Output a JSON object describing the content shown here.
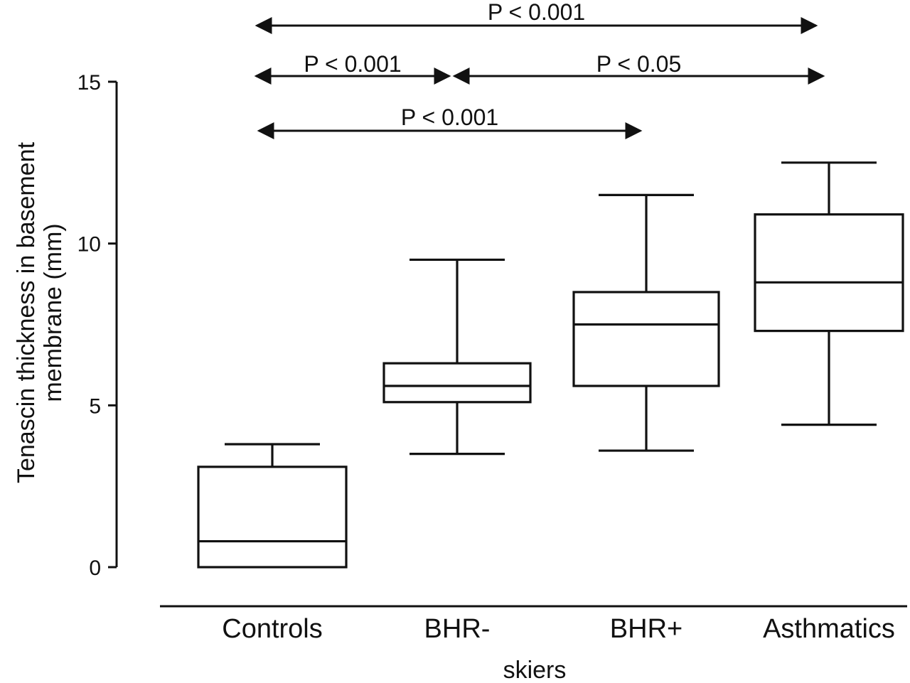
{
  "chart_data": {
    "type": "box",
    "xlabel": "skiers",
    "ylabel": "Tenascin thickness in basement membrane (mm)",
    "ylabel_lines": [
      "Tenascin thickness in basement",
      "membrane (mm)"
    ],
    "ylim": [
      0,
      15
    ],
    "yticks": [
      0,
      5,
      10,
      15
    ],
    "categories": [
      "Controls",
      "BHR-",
      "BHR+",
      "Asthmatics"
    ],
    "boxes": [
      {
        "category": "Controls",
        "min": 0,
        "q1": 0,
        "median": 0.8,
        "q3": 3.1,
        "max": 3.8
      },
      {
        "category": "BHR-",
        "min": 3.5,
        "q1": 5.1,
        "median": 5.6,
        "q3": 6.3,
        "max": 9.5
      },
      {
        "category": "BHR+",
        "min": 3.6,
        "q1": 5.6,
        "median": 7.5,
        "q3": 8.5,
        "max": 11.5
      },
      {
        "category": "Asthmatics",
        "min": 4.4,
        "q1": 7.3,
        "median": 8.8,
        "q3": 10.9,
        "max": 12.5
      }
    ],
    "annotations": [
      {
        "from": "Controls",
        "to": "Asthmatics",
        "text": "P < 0.001"
      },
      {
        "from": "Controls",
        "to": "BHR-",
        "text": "P < 0.001"
      },
      {
        "from": "BHR-",
        "to": "Asthmatics",
        "text": "P < 0.05"
      },
      {
        "from": "Controls",
        "to": "BHR+",
        "text": "P < 0.001"
      }
    ],
    "grid": false,
    "legend": "none"
  }
}
